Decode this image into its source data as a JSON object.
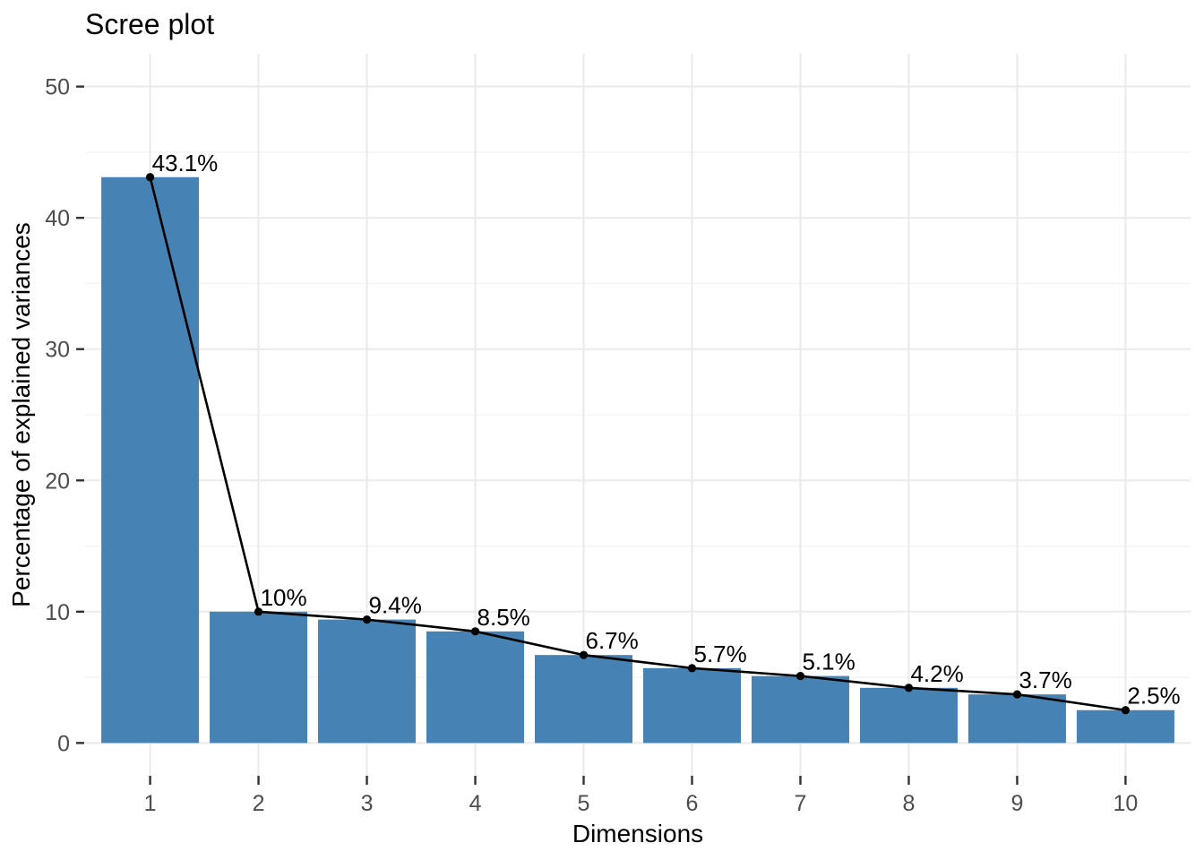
{
  "chart_data": {
    "type": "bar",
    "overlay": "line-with-points",
    "title": "Scree plot",
    "xlabel": "Dimensions",
    "ylabel": "Percentage of explained variances",
    "categories": [
      "1",
      "2",
      "3",
      "4",
      "5",
      "6",
      "7",
      "8",
      "9",
      "10"
    ],
    "values": [
      43.1,
      10,
      9.4,
      8.5,
      6.7,
      5.7,
      5.1,
      4.2,
      3.7,
      2.5
    ],
    "point_labels": [
      "43.1%",
      "10%",
      "9.4%",
      "8.5%",
      "6.7%",
      "5.7%",
      "5.1%",
      "4.2%",
      "3.7%",
      "2.5%"
    ],
    "ylim": [
      -2.5,
      52.5
    ],
    "yticks": [
      0,
      10,
      20,
      30,
      40,
      50
    ],
    "yticks_minor": [
      5,
      15,
      25,
      35,
      45
    ],
    "grid": "horizontal major+minor, vertical major at each category",
    "legend": "none",
    "colors": {
      "bar_fill": "#4682B4",
      "line": "#000000",
      "point": "#000000",
      "point_label": "#000000",
      "grid_major": "#EBEBEB",
      "grid_minor": "#F3F3F3",
      "axis_tick": "#333333",
      "tick_label": "#4D4D4D",
      "title_text": "#000000",
      "background": "#FFFFFF"
    }
  }
}
